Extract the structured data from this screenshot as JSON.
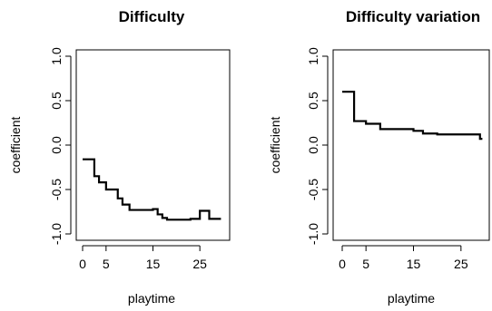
{
  "chart_data": [
    {
      "type": "line",
      "title": "Difficulty",
      "xlabel": "playtime",
      "ylabel": "coefficient",
      "xlim": [
        0,
        30
      ],
      "ylim": [
        -1.0,
        1.0
      ],
      "x_ticks": [
        0,
        5,
        15,
        25
      ],
      "x_tick_labels": [
        "0",
        "5",
        "15",
        "25"
      ],
      "y_ticks": [
        -1.0,
        -0.5,
        0.0,
        0.5,
        1.0
      ],
      "y_tick_labels": [
        "-1.0",
        "-0.5",
        "0.0",
        "0.5",
        "1.0"
      ],
      "step": true,
      "series": [
        {
          "x": [
            0,
            2.5,
            3.5,
            5,
            7.5,
            8.5,
            10,
            15,
            16,
            17,
            18,
            20,
            23,
            25,
            27,
            29.5
          ],
          "y": [
            -0.16,
            -0.35,
            -0.42,
            -0.5,
            -0.6,
            -0.67,
            -0.73,
            -0.72,
            -0.78,
            -0.82,
            -0.84,
            -0.84,
            -0.83,
            -0.74,
            -0.83,
            -0.83
          ]
        }
      ]
    },
    {
      "type": "line",
      "title": "Difficulty variation",
      "xlabel": "playtime",
      "ylabel": "coefficient",
      "xlim": [
        0,
        30
      ],
      "ylim": [
        -1.0,
        1.0
      ],
      "x_ticks": [
        0,
        5,
        15,
        25
      ],
      "x_tick_labels": [
        "0",
        "5",
        "15",
        "25"
      ],
      "y_ticks": [
        -1.0,
        -0.5,
        0.0,
        0.5,
        1.0
      ],
      "y_tick_labels": [
        "-1.0",
        "-0.5",
        "0.0",
        "0.5",
        "1.0"
      ],
      "step": true,
      "series": [
        {
          "x": [
            0,
            2.5,
            5,
            8,
            10,
            15,
            17,
            20,
            25,
            29,
            29.5
          ],
          "y": [
            0.6,
            0.27,
            0.24,
            0.18,
            0.18,
            0.16,
            0.13,
            0.12,
            0.12,
            0.07,
            0.07
          ]
        }
      ]
    }
  ]
}
